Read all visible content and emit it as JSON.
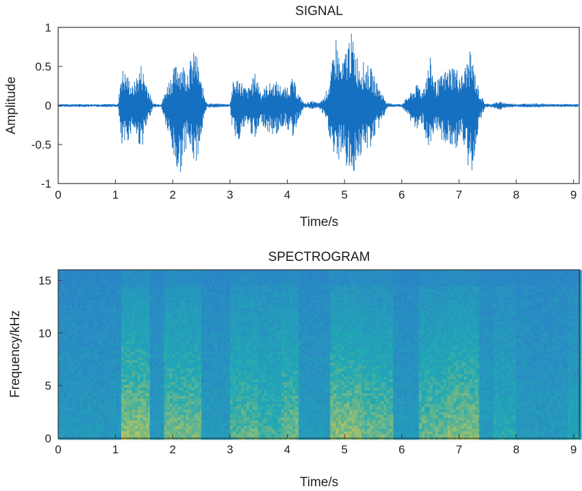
{
  "colors": {
    "waveform": "#1670c2",
    "axes": "#333333",
    "spectrogram_low": "#2b83c7",
    "spectrogram_mid": "#21a9b4",
    "spectrogram_high": "#e3cc45"
  },
  "chart_data": [
    {
      "type": "line",
      "title": "SIGNAL",
      "xlabel": "Time/s",
      "ylabel": "Amplitude",
      "xlim": [
        0,
        9.1
      ],
      "ylim": [
        -1,
        1
      ],
      "x_ticks": [
        0,
        1,
        2,
        3,
        4,
        5,
        6,
        7,
        8,
        9
      ],
      "y_ticks": [
        1,
        0.5,
        0,
        -0.5,
        -1
      ],
      "x_tick_labels": [
        "0",
        "1",
        "2",
        "3",
        "4",
        "5",
        "6",
        "7",
        "8",
        "9"
      ],
      "y_tick_labels": [
        "1",
        "0.5",
        "0",
        "-0.5",
        "-1"
      ],
      "grid": false,
      "envelope": {
        "t": [
          0,
          1.05,
          1.1,
          1.2,
          1.3,
          1.45,
          1.55,
          1.65,
          1.8,
          1.95,
          2.1,
          2.25,
          2.4,
          2.5,
          2.6,
          3.0,
          3.05,
          3.15,
          3.3,
          3.45,
          3.55,
          3.65,
          3.8,
          3.95,
          4.1,
          4.2,
          4.3,
          4.45,
          4.55,
          4.65,
          4.75,
          4.85,
          4.95,
          5.1,
          5.25,
          5.45,
          5.6,
          5.75,
          5.9,
          6.0,
          6.3,
          6.35,
          6.5,
          6.6,
          6.75,
          6.9,
          7.05,
          7.2,
          7.35,
          7.45,
          7.55,
          7.7,
          7.85,
          8.0,
          8.3,
          8.6,
          9.1
        ],
        "upper": [
          0.02,
          0.02,
          0.5,
          0.42,
          0.25,
          0.55,
          0.3,
          0.03,
          0.02,
          0.38,
          0.6,
          0.5,
          0.74,
          0.3,
          0.03,
          0.02,
          0.3,
          0.38,
          0.2,
          0.44,
          0.18,
          0.28,
          0.32,
          0.22,
          0.36,
          0.15,
          0.03,
          0.06,
          0.03,
          0.12,
          0.35,
          0.92,
          0.5,
          0.98,
          0.6,
          0.5,
          0.25,
          0.03,
          0.02,
          0.02,
          0.3,
          0.18,
          0.62,
          0.3,
          0.45,
          0.55,
          0.4,
          0.72,
          0.2,
          0.03,
          0.02,
          0.05,
          0.03,
          0.02,
          0.03,
          0.02,
          0.02
        ],
        "lower": [
          -0.02,
          -0.02,
          -0.6,
          -0.5,
          -0.3,
          -0.58,
          -0.3,
          -0.03,
          -0.02,
          -0.5,
          -0.98,
          -0.5,
          -0.8,
          -0.4,
          -0.03,
          -0.02,
          -0.38,
          -0.45,
          -0.25,
          -0.5,
          -0.22,
          -0.35,
          -0.4,
          -0.25,
          -0.42,
          -0.18,
          -0.03,
          -0.05,
          -0.03,
          -0.15,
          -0.45,
          -0.85,
          -0.6,
          -0.98,
          -0.7,
          -0.55,
          -0.3,
          -0.03,
          -0.02,
          -0.02,
          -0.38,
          -0.22,
          -0.68,
          -0.35,
          -0.5,
          -0.6,
          -0.45,
          -0.98,
          -0.25,
          -0.03,
          -0.02,
          -0.06,
          -0.03,
          -0.02,
          -0.03,
          -0.02,
          -0.02
        ]
      }
    },
    {
      "type": "heatmap",
      "title": "SPECTROGRAM",
      "xlabel": "Time/s",
      "ylabel": "Frequency/kHz",
      "xlim": [
        0,
        9.1
      ],
      "ylim": [
        0,
        16
      ],
      "x_ticks": [
        0,
        1,
        2,
        3,
        4,
        5,
        6,
        7,
        8,
        9
      ],
      "y_ticks": [
        15,
        10,
        5,
        0
      ],
      "x_tick_labels": [
        "0",
        "1",
        "2",
        "3",
        "4",
        "5",
        "6",
        "7",
        "8",
        "9"
      ],
      "y_tick_labels": [
        "15",
        "10",
        "5",
        "0"
      ],
      "grid": false,
      "energy_columns": [
        {
          "t": [
            0.0,
            1.1
          ],
          "level": 0.28
        },
        {
          "t": [
            1.1,
            1.6
          ],
          "level": 0.82
        },
        {
          "t": [
            1.6,
            1.85
          ],
          "level": 0.3
        },
        {
          "t": [
            1.85,
            2.5
          ],
          "level": 0.75
        },
        {
          "t": [
            2.5,
            3.0
          ],
          "level": 0.32
        },
        {
          "t": [
            3.0,
            3.5
          ],
          "level": 0.68
        },
        {
          "t": [
            3.5,
            3.9
          ],
          "level": 0.6
        },
        {
          "t": [
            3.9,
            4.2
          ],
          "level": 0.72
        },
        {
          "t": [
            4.2,
            4.75
          ],
          "level": 0.32
        },
        {
          "t": [
            4.75,
            5.3
          ],
          "level": 0.8
        },
        {
          "t": [
            5.3,
            5.85
          ],
          "level": 0.72
        },
        {
          "t": [
            5.85,
            6.3
          ],
          "level": 0.3
        },
        {
          "t": [
            6.3,
            6.8
          ],
          "level": 0.7
        },
        {
          "t": [
            6.8,
            7.35
          ],
          "level": 0.78
        },
        {
          "t": [
            7.35,
            7.6
          ],
          "level": 0.35
        },
        {
          "t": [
            7.6,
            8.0
          ],
          "level": 0.5
        },
        {
          "t": [
            8.0,
            8.9
          ],
          "level": 0.3
        },
        {
          "t": [
            8.9,
            9.1
          ],
          "level": 0.45
        }
      ]
    }
  ]
}
